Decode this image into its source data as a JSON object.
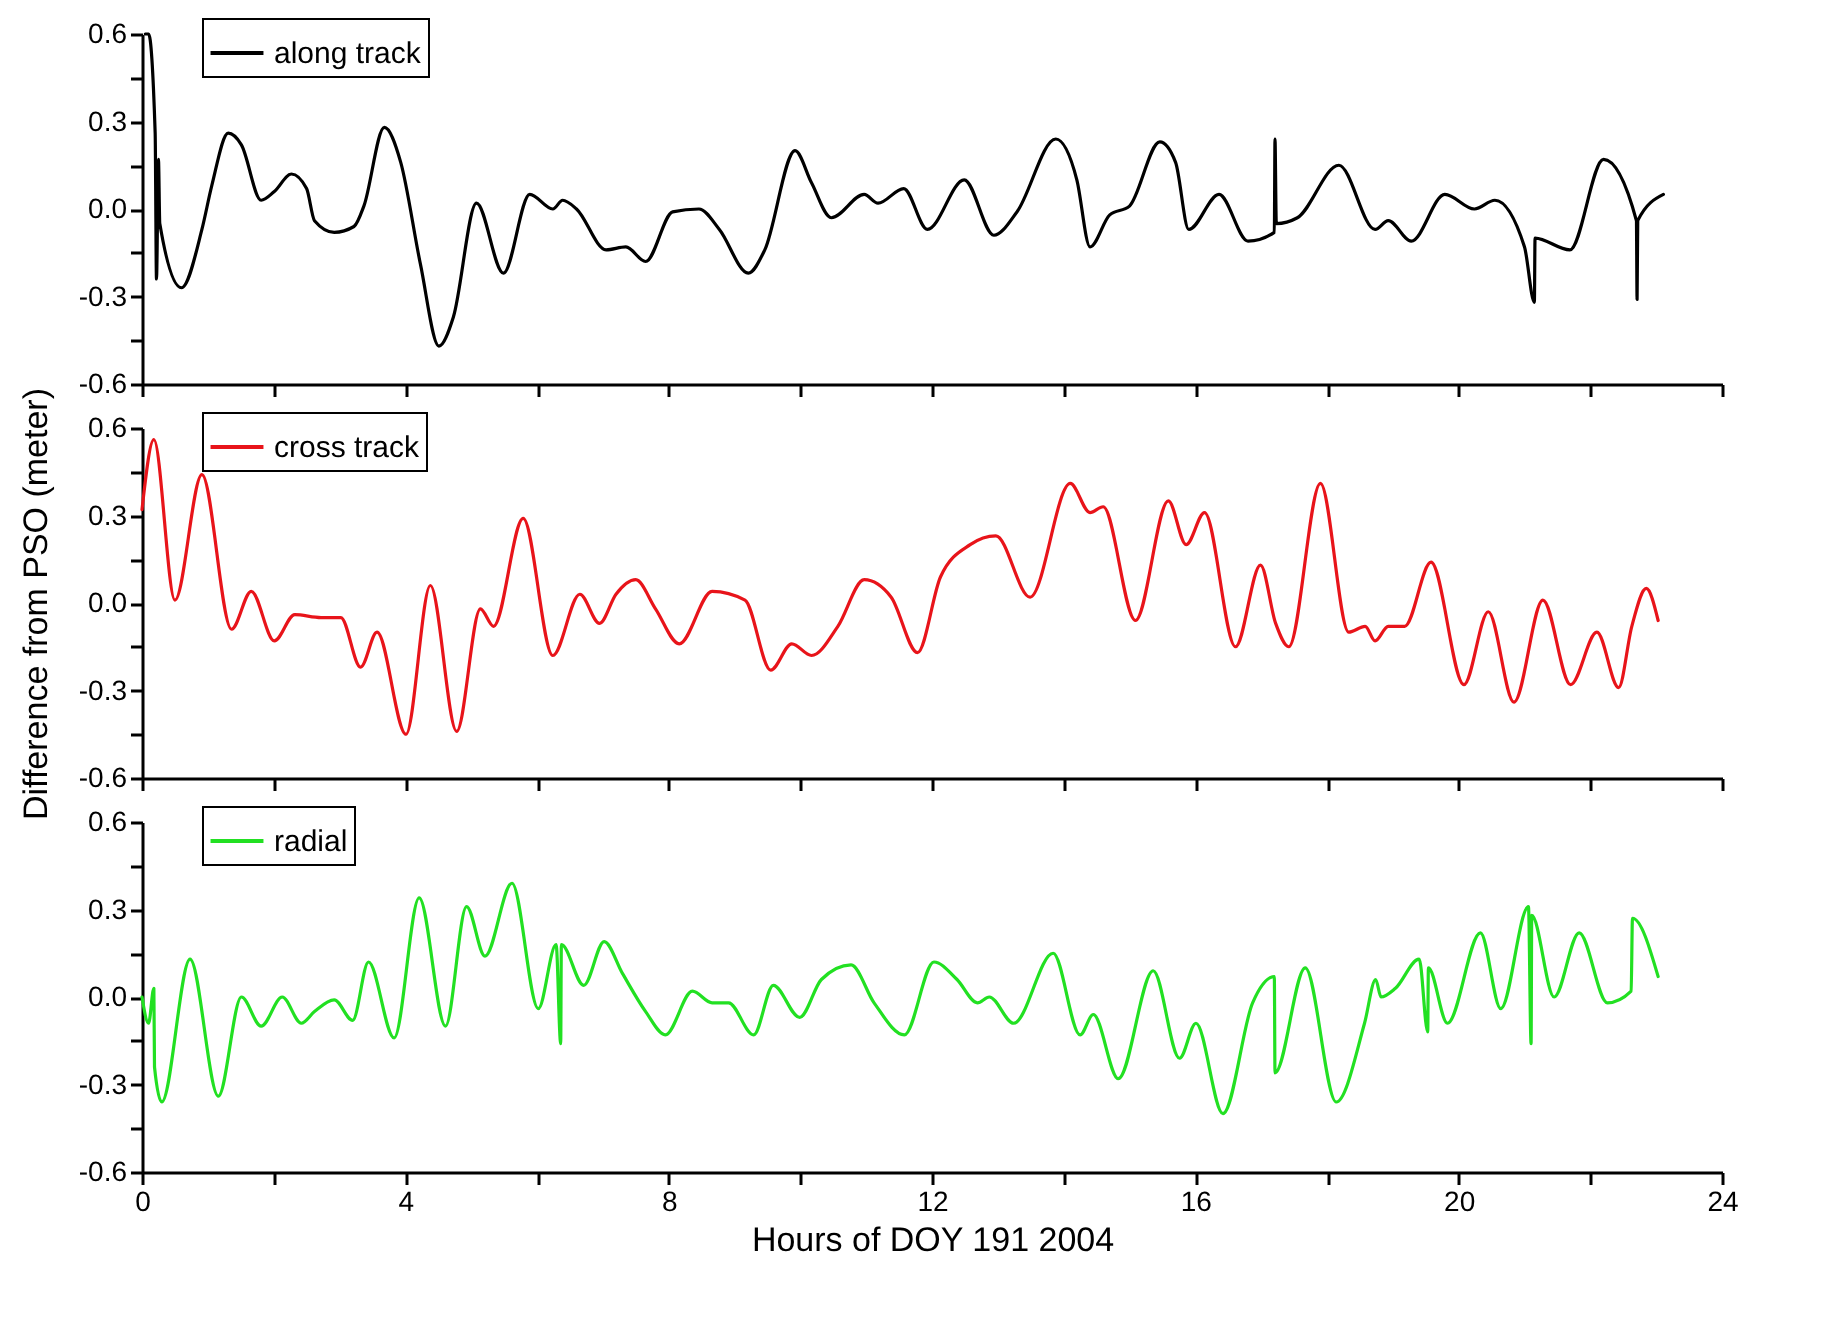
{
  "chart_data": [
    {
      "type": "line",
      "xlim": [
        0,
        24
      ],
      "xticks": [
        0,
        {
          "value": 2,
          "label": null
        },
        4,
        {
          "value": 6,
          "label": null
        },
        8,
        {
          "value": 10,
          "label": null
        },
        12,
        {
          "value": 14,
          "label": null
        },
        16,
        {
          "value": 18,
          "label": null
        },
        20,
        {
          "value": 22,
          "label": null
        },
        24
      ],
      "ylim": [
        -0.6,
        0.6
      ],
      "yticks": [
        {
          "value": -0.6,
          "label": "-0.6"
        },
        {
          "value": -0.45,
          "label": null
        },
        {
          "value": -0.3,
          "label": "-0.3"
        },
        {
          "value": -0.15,
          "label": null
        },
        {
          "value": 0,
          "label": "0.0"
        },
        {
          "value": 0.15,
          "label": null
        },
        {
          "value": 0.3,
          "label": "0.3"
        },
        {
          "value": 0.45,
          "label": null
        },
        {
          "value": 0.6,
          "label": "0.6"
        }
      ],
      "tick_labels": "y",
      "legend": "top left",
      "grid": false,
      "series": [
        {
          "name": "along track",
          "color": "#000000",
          "x": [
            0.05,
            0.1,
            0.2,
            0.22,
            0.25,
            0.27,
            0.6,
            0.91,
            1.06,
            1.31,
            1.51,
            1.81,
            2.01,
            2.27,
            2.5,
            2.62,
            2.92,
            3.22,
            3.37,
            3.68,
            3.93,
            4.23,
            4.51,
            4.73,
            5.08,
            5.49,
            5.89,
            6.24,
            6.39,
            6.6,
            7.05,
            7.35,
            7.65,
            8.06,
            8.46,
            8.77,
            9.21,
            9.46,
            9.92,
            10.17,
            10.47,
            10.97,
            11.18,
            11.57,
            11.93,
            12.49,
            12.94,
            13.29,
            13.88,
            14.2,
            14.4,
            14.7,
            15.0,
            15.46,
            15.7,
            15.9,
            16.36,
            16.8,
            17.2,
            17.21,
            17.23,
            17.55,
            18.18,
            18.73,
            18.93,
            19.28,
            19.79,
            20.24,
            20.55,
            21.0,
            21.15,
            21.16,
            21.69,
            22.2,
            22.7,
            22.71,
            22.72,
            23.11
          ],
          "values": [
            0.6,
            0.6,
            0.26,
            -0.24,
            0.17,
            -0.05,
            -0.27,
            -0.07,
            0.08,
            0.26,
            0.22,
            0.03,
            0.06,
            0.12,
            0.07,
            -0.04,
            -0.08,
            -0.06,
            0.01,
            0.28,
            0.16,
            -0.19,
            -0.47,
            -0.37,
            0.02,
            -0.22,
            0.05,
            0.0,
            0.03,
            0.0,
            -0.14,
            -0.13,
            -0.18,
            -0.01,
            0.0,
            -0.07,
            -0.22,
            -0.14,
            0.2,
            0.09,
            -0.03,
            0.05,
            0.02,
            0.07,
            -0.07,
            0.1,
            -0.09,
            -0.01,
            0.24,
            0.1,
            -0.13,
            -0.02,
            0.01,
            0.23,
            0.16,
            -0.07,
            0.05,
            -0.11,
            -0.08,
            0.24,
            -0.05,
            -0.03,
            0.15,
            -0.07,
            -0.04,
            -0.11,
            0.05,
            0.0,
            0.03,
            -0.13,
            -0.32,
            -0.1,
            -0.14,
            0.17,
            -0.04,
            -0.31,
            -0.04,
            0.05
          ]
        }
      ]
    },
    {
      "type": "line",
      "xlim": [
        0,
        24
      ],
      "xticks": [
        0,
        {
          "value": 2,
          "label": null
        },
        4,
        {
          "value": 6,
          "label": null
        },
        8,
        {
          "value": 10,
          "label": null
        },
        12,
        {
          "value": 14,
          "label": null
        },
        16,
        {
          "value": 18,
          "label": null
        },
        20,
        {
          "value": 22,
          "label": null
        },
        24
      ],
      "ylim": [
        -0.6,
        0.6
      ],
      "yticks": [
        {
          "value": -0.6,
          "label": "-0.6"
        },
        {
          "value": -0.45,
          "label": null
        },
        {
          "value": -0.3,
          "label": "-0.3"
        },
        {
          "value": -0.15,
          "label": null
        },
        {
          "value": 0,
          "label": "0.0"
        },
        {
          "value": 0.15,
          "label": null
        },
        {
          "value": 0.3,
          "label": "0.3"
        },
        {
          "value": 0.45,
          "label": null
        },
        {
          "value": 0.6,
          "label": "0.6"
        }
      ],
      "tick_labels": "y",
      "legend": "top left",
      "grid": false,
      "ylabel": "Difference from PSO (meter)",
      "series": [
        {
          "name": "cross track",
          "color": "#e8141a",
          "x": [
            0.0,
            0.18,
            0.5,
            0.91,
            1.36,
            1.66,
            2.01,
            2.32,
            2.72,
            3.02,
            3.32,
            3.57,
            4.01,
            4.38,
            4.78,
            5.14,
            5.34,
            5.79,
            6.24,
            6.65,
            6.95,
            7.2,
            7.5,
            7.8,
            8.16,
            8.66,
            9.16,
            9.55,
            9.87,
            10.17,
            10.57,
            10.97,
            11.38,
            11.78,
            12.13,
            12.58,
            12.97,
            13.49,
            14.1,
            14.4,
            14.6,
            15.09,
            15.59,
            15.86,
            16.14,
            16.61,
            16.99,
            17.22,
            17.42,
            17.9,
            18.33,
            18.58,
            18.73,
            18.93,
            19.18,
            19.58,
            20.08,
            20.45,
            20.84,
            21.28,
            21.7,
            22.1,
            22.43,
            22.63,
            22.85,
            23.03
          ],
          "values": [
            0.32,
            0.56,
            0.01,
            0.44,
            -0.09,
            0.04,
            -0.13,
            -0.04,
            -0.05,
            -0.05,
            -0.22,
            -0.1,
            -0.45,
            0.06,
            -0.44,
            -0.02,
            -0.08,
            0.29,
            -0.18,
            0.03,
            -0.07,
            0.03,
            0.08,
            -0.02,
            -0.14,
            0.04,
            0.01,
            -0.23,
            -0.14,
            -0.18,
            -0.08,
            0.08,
            0.02,
            -0.17,
            0.09,
            0.2,
            0.23,
            0.02,
            0.41,
            0.31,
            0.33,
            -0.06,
            0.35,
            0.2,
            0.31,
            -0.15,
            0.13,
            -0.07,
            -0.15,
            0.41,
            -0.1,
            -0.08,
            -0.13,
            -0.08,
            -0.08,
            0.14,
            -0.28,
            -0.03,
            -0.34,
            0.01,
            -0.28,
            -0.1,
            -0.29,
            -0.08,
            0.05,
            -0.06
          ]
        }
      ]
    },
    {
      "type": "line",
      "xlim": [
        0,
        24
      ],
      "xticks": [
        0,
        {
          "value": 2,
          "label": null
        },
        4,
        {
          "value": 6,
          "label": null
        },
        8,
        {
          "value": 10,
          "label": null
        },
        12,
        {
          "value": 14,
          "label": null
        },
        16,
        {
          "value": 18,
          "label": null
        },
        20,
        {
          "value": 22,
          "label": null
        },
        24
      ],
      "ylim": [
        -0.6,
        0.6
      ],
      "yticks": [
        {
          "value": -0.6,
          "label": "-0.6"
        },
        {
          "value": -0.45,
          "label": null
        },
        {
          "value": -0.3,
          "label": "-0.3"
        },
        {
          "value": -0.15,
          "label": null
        },
        {
          "value": 0,
          "label": "0.0"
        },
        {
          "value": 0.15,
          "label": null
        },
        {
          "value": 0.3,
          "label": "0.3"
        },
        {
          "value": 0.45,
          "label": null
        },
        {
          "value": 0.6,
          "label": "0.6"
        }
      ],
      "legend": "top left",
      "grid": false,
      "xlabel": "Hours of DOY 191 2004",
      "series": [
        {
          "name": "radial",
          "color": "#22e022",
          "x": [
            0.0,
            0.1,
            0.18,
            0.19,
            0.3,
            0.73,
            1.16,
            1.51,
            1.81,
            2.13,
            2.42,
            2.62,
            2.92,
            3.2,
            3.44,
            3.83,
            4.21,
            4.61,
            4.93,
            5.21,
            5.62,
            6.02,
            6.29,
            6.36,
            6.37,
            6.71,
            7.02,
            7.3,
            7.65,
            7.95,
            8.36,
            8.66,
            8.91,
            9.29,
            9.59,
            9.99,
            10.32,
            10.77,
            11.12,
            11.58,
            12.03,
            12.38,
            12.69,
            12.87,
            13.24,
            13.84,
            14.25,
            14.45,
            14.83,
            15.36,
            15.76,
            16.01,
            16.42,
            16.87,
            17.2,
            17.21,
            17.67,
            18.14,
            18.57,
            18.74,
            18.82,
            19.04,
            19.4,
            19.53,
            19.54,
            19.83,
            20.33,
            20.64,
            21.06,
            21.1,
            21.11,
            21.45,
            21.83,
            22.26,
            22.62,
            22.64,
            23.03
          ],
          "values": [
            0.0,
            -0.09,
            0.03,
            -0.24,
            -0.36,
            0.13,
            -0.34,
            0.0,
            -0.1,
            0.0,
            -0.09,
            -0.05,
            -0.01,
            -0.08,
            0.12,
            -0.14,
            0.34,
            -0.1,
            0.31,
            0.14,
            0.39,
            -0.04,
            0.18,
            -0.16,
            0.18,
            0.04,
            0.19,
            0.08,
            -0.05,
            -0.13,
            0.02,
            -0.02,
            -0.02,
            -0.13,
            0.04,
            -0.07,
            0.06,
            0.11,
            -0.02,
            -0.13,
            0.12,
            0.06,
            -0.02,
            0.0,
            -0.09,
            0.15,
            -0.13,
            -0.06,
            -0.28,
            0.09,
            -0.21,
            -0.09,
            -0.4,
            -0.02,
            0.07,
            -0.26,
            0.1,
            -0.36,
            -0.09,
            0.06,
            0.0,
            0.03,
            0.13,
            -0.12,
            0.1,
            -0.09,
            0.22,
            -0.04,
            0.31,
            -0.16,
            0.28,
            0.0,
            0.22,
            -0.02,
            0.02,
            0.27,
            0.07
          ]
        }
      ]
    }
  ]
}
